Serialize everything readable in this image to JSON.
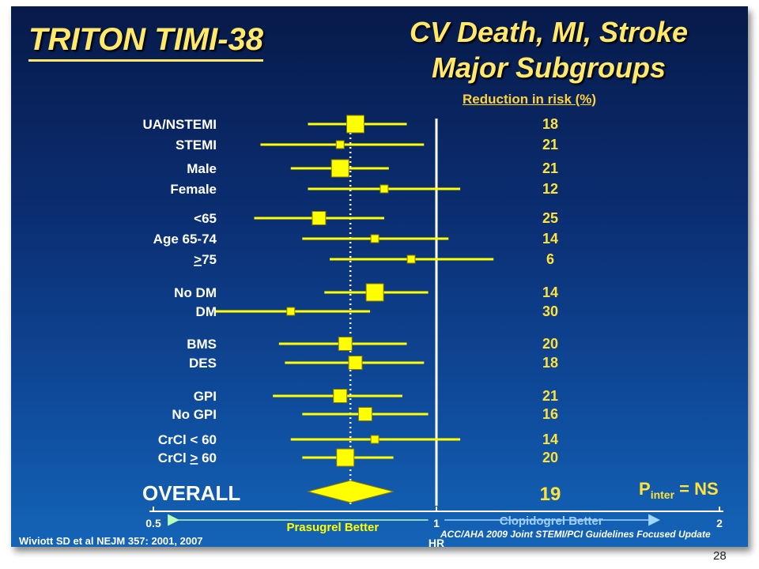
{
  "slide": {
    "study_title": "TRITON TIMI-38",
    "title_line1": "CV Death, MI, Stroke",
    "title_line2": "Major Subgroups",
    "rr_header": "Reduction in risk (%)",
    "p_inter": "P",
    "p_inter_sub": "inter",
    "p_inter_value": " = NS",
    "footer_left": "Wiviott SD et al NEJM 357: 2001, 2007",
    "footer_right": "ACC/AHA 2009 Joint STEMI/PCI Guidelines Focused Update",
    "page_number": "28"
  },
  "colors": {
    "background_top": "#071a4a",
    "background_bottom": "#1464b8",
    "title": "#ffe86a",
    "marker": "#ffff00",
    "label": "#ffffff",
    "reduction_value": "#ffe23a",
    "arrow_left": "#b8ffb8",
    "arrow_right": "#9fd8ff"
  },
  "chart_data": {
    "type": "forest",
    "xlabel": "HR",
    "x_scale": "log",
    "xlim": [
      0.5,
      2
    ],
    "x_ticks": [
      "0.5",
      "1",
      "2"
    ],
    "reference_line": 1,
    "overall_line": 0.81,
    "left_arrow_label": "Prasugrel Better",
    "right_arrow_label": "Clopidogrel Better",
    "rows": [
      {
        "label": "UA/NSTEMI",
        "hr": 0.82,
        "ci": [
          0.73,
          0.93
        ],
        "size": "large",
        "reduction": "18"
      },
      {
        "label": "STEMI",
        "hr": 0.79,
        "ci": [
          0.65,
          0.97
        ],
        "size": "small",
        "reduction": "21"
      },
      {
        "label": "Male",
        "hr": 0.79,
        "ci": [
          0.7,
          0.89
        ],
        "size": "large",
        "reduction": "21"
      },
      {
        "label": "Female",
        "hr": 0.88,
        "ci": [
          0.73,
          1.06
        ],
        "size": "small",
        "reduction": "12"
      },
      {
        "label": "<65",
        "hr": 0.75,
        "ci": [
          0.64,
          0.88
        ],
        "size": "medium",
        "reduction": "25"
      },
      {
        "label": "Age  65-74",
        "hr": 0.86,
        "ci": [
          0.72,
          1.03
        ],
        "size": "small",
        "reduction": "14"
      },
      {
        "label": ">75",
        "hr": 0.94,
        "ci": [
          0.77,
          1.15
        ],
        "size": "small",
        "reduction": "6",
        "underline_first_char": true
      },
      {
        "label": "No DM",
        "hr": 0.86,
        "ci": [
          0.76,
          0.98
        ],
        "size": "large",
        "reduction": "14"
      },
      {
        "label": "DM",
        "hr": 0.7,
        "ci": [
          0.58,
          0.85
        ],
        "size": "small",
        "reduction": "30"
      },
      {
        "label": "BMS",
        "hr": 0.8,
        "ci": [
          0.68,
          0.93
        ],
        "size": "medium",
        "reduction": "20"
      },
      {
        "label": "DES",
        "hr": 0.82,
        "ci": [
          0.69,
          0.97
        ],
        "size": "medium",
        "reduction": "18"
      },
      {
        "label": "GPI",
        "hr": 0.79,
        "ci": [
          0.67,
          0.92
        ],
        "size": "medium",
        "reduction": "21"
      },
      {
        "label": "No GPI",
        "hr": 0.84,
        "ci": [
          0.72,
          0.98
        ],
        "size": "medium",
        "reduction": "16"
      },
      {
        "label": "CrCl < 60",
        "hr": 0.86,
        "ci": [
          0.7,
          1.06
        ],
        "size": "small",
        "reduction": "14"
      },
      {
        "label": "CrCl > 60",
        "hr": 0.8,
        "ci": [
          0.72,
          0.9
        ],
        "size": "large",
        "reduction": "20",
        "underline_char": ">"
      }
    ],
    "overall": {
      "label": "OVERALL",
      "hr": 0.81,
      "ci": [
        0.73,
        0.9
      ],
      "reduction": "19"
    }
  }
}
